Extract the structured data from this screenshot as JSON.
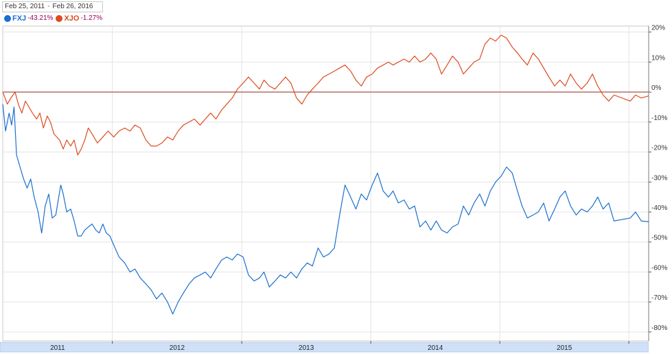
{
  "range": {
    "start": "Feb 25, 2011",
    "end": "Feb 26, 2016",
    "separator": "-"
  },
  "legend": [
    {
      "symbol": "FXJ",
      "change": "-43.21%",
      "color": "#1a6fd0"
    },
    {
      "symbol": "XJO",
      "change": "-1.27%",
      "color": "#dd4a1e"
    }
  ],
  "chart_data": {
    "type": "line",
    "ylabel": "",
    "ylim": [
      -83,
      22
    ],
    "y_ticks": [
      "20%",
      "10%",
      "0%",
      "-10%",
      "-20%",
      "-30%",
      "-40%",
      "-50%",
      "-60%",
      "-70%",
      "-80%"
    ],
    "y_tick_values": [
      20,
      10,
      0,
      -10,
      -20,
      -30,
      -40,
      -50,
      -60,
      -70,
      -80
    ],
    "year_ticks": [
      "2011",
      "2012",
      "2013",
      "2014",
      "2015"
    ],
    "x_start": "2011-02-25",
    "x_end": "2016-02-26",
    "grid": true,
    "series": [
      {
        "name": "FXJ",
        "color": "#1a6fd0",
        "points": [
          [
            "2011-02-25",
            -4
          ],
          [
            "2011-03-05",
            -13
          ],
          [
            "2011-03-15",
            -7
          ],
          [
            "2011-03-22",
            -11
          ],
          [
            "2011-03-29",
            -5
          ],
          [
            "2011-04-05",
            -21
          ],
          [
            "2011-04-15",
            -25
          ],
          [
            "2011-04-25",
            -29
          ],
          [
            "2011-05-05",
            -32
          ],
          [
            "2011-05-15",
            -29
          ],
          [
            "2011-05-25",
            -35
          ],
          [
            "2011-06-05",
            -40
          ],
          [
            "2011-06-15",
            -47
          ],
          [
            "2011-06-25",
            -38
          ],
          [
            "2011-07-05",
            -34
          ],
          [
            "2011-07-15",
            -42
          ],
          [
            "2011-07-25",
            -41
          ],
          [
            "2011-08-01",
            -36
          ],
          [
            "2011-08-08",
            -31
          ],
          [
            "2011-08-15",
            -34
          ],
          [
            "2011-08-25",
            -40
          ],
          [
            "2011-09-05",
            -39
          ],
          [
            "2011-09-15",
            -43
          ],
          [
            "2011-09-25",
            -48
          ],
          [
            "2011-10-05",
            -48
          ],
          [
            "2011-10-15",
            -46
          ],
          [
            "2011-10-25",
            -45
          ],
          [
            "2011-11-05",
            -44
          ],
          [
            "2011-11-15",
            -46
          ],
          [
            "2011-11-25",
            -47
          ],
          [
            "2011-12-05",
            -44
          ],
          [
            "2011-12-15",
            -47
          ],
          [
            "2011-12-25",
            -48
          ],
          [
            "2012-01-05",
            -51
          ],
          [
            "2012-01-20",
            -55
          ],
          [
            "2012-02-05",
            -57
          ],
          [
            "2012-02-20",
            -60
          ],
          [
            "2012-03-05",
            -59
          ],
          [
            "2012-03-20",
            -62
          ],
          [
            "2012-04-05",
            -64
          ],
          [
            "2012-04-20",
            -66
          ],
          [
            "2012-05-05",
            -69
          ],
          [
            "2012-05-20",
            -67
          ],
          [
            "2012-06-05",
            -70
          ],
          [
            "2012-06-20",
            -74
          ],
          [
            "2012-07-05",
            -70
          ],
          [
            "2012-07-20",
            -67
          ],
          [
            "2012-08-05",
            -64
          ],
          [
            "2012-08-20",
            -62
          ],
          [
            "2012-09-05",
            -61
          ],
          [
            "2012-09-20",
            -60
          ],
          [
            "2012-10-05",
            -62
          ],
          [
            "2012-10-20",
            -59
          ],
          [
            "2012-11-05",
            -56
          ],
          [
            "2012-11-20",
            -55
          ],
          [
            "2012-12-05",
            -56
          ],
          [
            "2012-12-20",
            -54
          ],
          [
            "2013-01-05",
            -55
          ],
          [
            "2013-01-20",
            -61
          ],
          [
            "2013-02-05",
            -63
          ],
          [
            "2013-02-20",
            -62
          ],
          [
            "2013-03-05",
            -60
          ],
          [
            "2013-03-20",
            -65
          ],
          [
            "2013-04-05",
            -63
          ],
          [
            "2013-04-20",
            -61
          ],
          [
            "2013-05-05",
            -62
          ],
          [
            "2013-05-20",
            -60
          ],
          [
            "2013-06-05",
            -62
          ],
          [
            "2013-06-20",
            -59
          ],
          [
            "2013-07-05",
            -57
          ],
          [
            "2013-07-20",
            -58
          ],
          [
            "2013-08-05",
            -52
          ],
          [
            "2013-08-20",
            -55
          ],
          [
            "2013-09-05",
            -54
          ],
          [
            "2013-09-20",
            -52
          ],
          [
            "2013-10-05",
            -41
          ],
          [
            "2013-10-20",
            -31
          ],
          [
            "2013-11-05",
            -35
          ],
          [
            "2013-11-20",
            -39
          ],
          [
            "2013-12-05",
            -34
          ],
          [
            "2013-12-20",
            -36
          ],
          [
            "2014-01-05",
            -31
          ],
          [
            "2014-01-20",
            -27
          ],
          [
            "2014-02-05",
            -33
          ],
          [
            "2014-02-20",
            -35
          ],
          [
            "2014-03-05",
            -33
          ],
          [
            "2014-03-20",
            -37
          ],
          [
            "2014-04-05",
            -36
          ],
          [
            "2014-04-20",
            -39
          ],
          [
            "2014-05-05",
            -38
          ],
          [
            "2014-05-20",
            -45
          ],
          [
            "2014-06-05",
            -43
          ],
          [
            "2014-06-20",
            -46
          ],
          [
            "2014-07-05",
            -43
          ],
          [
            "2014-07-20",
            -46
          ],
          [
            "2014-08-05",
            -47
          ],
          [
            "2014-08-20",
            -45
          ],
          [
            "2014-09-05",
            -44
          ],
          [
            "2014-09-20",
            -38
          ],
          [
            "2014-10-05",
            -41
          ],
          [
            "2014-10-20",
            -37
          ],
          [
            "2014-11-05",
            -34
          ],
          [
            "2014-11-20",
            -38
          ],
          [
            "2014-12-05",
            -33
          ],
          [
            "2014-12-20",
            -30
          ],
          [
            "2015-01-05",
            -28
          ],
          [
            "2015-01-20",
            -25
          ],
          [
            "2015-02-05",
            -27
          ],
          [
            "2015-02-20",
            -33
          ],
          [
            "2015-03-05",
            -38
          ],
          [
            "2015-03-20",
            -42
          ],
          [
            "2015-04-05",
            -41
          ],
          [
            "2015-04-20",
            -40
          ],
          [
            "2015-05-05",
            -37
          ],
          [
            "2015-05-20",
            -43
          ],
          [
            "2015-06-05",
            -39
          ],
          [
            "2015-06-20",
            -35
          ],
          [
            "2015-07-05",
            -33
          ],
          [
            "2015-07-20",
            -38
          ],
          [
            "2015-08-05",
            -41
          ],
          [
            "2015-08-20",
            -39
          ],
          [
            "2015-09-05",
            -40
          ],
          [
            "2015-09-20",
            -38
          ],
          [
            "2015-10-05",
            -35
          ],
          [
            "2015-10-20",
            -39
          ],
          [
            "2015-11-05",
            -37
          ],
          [
            "2015-11-20",
            -43
          ],
          [
            "2016-01-05",
            -42
          ],
          [
            "2016-01-20",
            -40
          ],
          [
            "2016-02-05",
            -43
          ],
          [
            "2016-02-26",
            -43.21
          ]
        ]
      },
      {
        "name": "XJO",
        "color": "#dd4a1e",
        "points": [
          [
            "2011-02-25",
            0
          ],
          [
            "2011-03-10",
            -4
          ],
          [
            "2011-03-20",
            -2
          ],
          [
            "2011-04-01",
            0
          ],
          [
            "2011-04-10",
            -4
          ],
          [
            "2011-04-20",
            -7
          ],
          [
            "2011-04-30",
            -3
          ],
          [
            "2011-05-10",
            -5
          ],
          [
            "2011-05-20",
            -7
          ],
          [
            "2011-06-01",
            -9
          ],
          [
            "2011-06-10",
            -7
          ],
          [
            "2011-06-20",
            -12
          ],
          [
            "2011-07-01",
            -8
          ],
          [
            "2011-07-10",
            -10
          ],
          [
            "2011-07-20",
            -14
          ],
          [
            "2011-08-05",
            -16
          ],
          [
            "2011-08-15",
            -19
          ],
          [
            "2011-08-25",
            -16
          ],
          [
            "2011-09-05",
            -18
          ],
          [
            "2011-09-15",
            -16
          ],
          [
            "2011-09-25",
            -21
          ],
          [
            "2011-10-05",
            -19
          ],
          [
            "2011-10-15",
            -16
          ],
          [
            "2011-10-25",
            -12
          ],
          [
            "2011-11-05",
            -14
          ],
          [
            "2011-11-20",
            -17
          ],
          [
            "2011-12-05",
            -15
          ],
          [
            "2011-12-20",
            -13
          ],
          [
            "2012-01-05",
            -15
          ],
          [
            "2012-01-20",
            -13
          ],
          [
            "2012-02-05",
            -12
          ],
          [
            "2012-02-20",
            -13
          ],
          [
            "2012-03-05",
            -11
          ],
          [
            "2012-03-20",
            -12
          ],
          [
            "2012-04-05",
            -16
          ],
          [
            "2012-04-20",
            -18
          ],
          [
            "2012-05-05",
            -18
          ],
          [
            "2012-05-20",
            -17
          ],
          [
            "2012-06-05",
            -15
          ],
          [
            "2012-06-20",
            -16
          ],
          [
            "2012-07-05",
            -13
          ],
          [
            "2012-07-20",
            -11
          ],
          [
            "2012-08-05",
            -10
          ],
          [
            "2012-08-20",
            -9
          ],
          [
            "2012-09-05",
            -11
          ],
          [
            "2012-09-20",
            -9
          ],
          [
            "2012-10-05",
            -7
          ],
          [
            "2012-10-20",
            -9
          ],
          [
            "2012-11-05",
            -6
          ],
          [
            "2012-11-20",
            -4
          ],
          [
            "2012-12-05",
            -2
          ],
          [
            "2012-12-20",
            1
          ],
          [
            "2013-01-05",
            3
          ],
          [
            "2013-01-20",
            5
          ],
          [
            "2013-02-05",
            3
          ],
          [
            "2013-02-20",
            1
          ],
          [
            "2013-03-05",
            4
          ],
          [
            "2013-03-20",
            2
          ],
          [
            "2013-04-05",
            1
          ],
          [
            "2013-04-20",
            3
          ],
          [
            "2013-05-05",
            5
          ],
          [
            "2013-05-20",
            3
          ],
          [
            "2013-06-05",
            -2
          ],
          [
            "2013-06-20",
            -4
          ],
          [
            "2013-07-05",
            -1
          ],
          [
            "2013-07-20",
            1
          ],
          [
            "2013-08-05",
            3
          ],
          [
            "2013-08-20",
            5
          ],
          [
            "2013-09-05",
            6
          ],
          [
            "2013-09-20",
            7
          ],
          [
            "2013-10-05",
            8
          ],
          [
            "2013-10-20",
            9
          ],
          [
            "2013-11-05",
            7
          ],
          [
            "2013-11-20",
            4
          ],
          [
            "2013-12-05",
            2
          ],
          [
            "2013-12-20",
            5
          ],
          [
            "2014-01-05",
            6
          ],
          [
            "2014-01-20",
            8
          ],
          [
            "2014-02-05",
            9
          ],
          [
            "2014-02-20",
            10
          ],
          [
            "2014-03-05",
            9
          ],
          [
            "2014-03-20",
            10
          ],
          [
            "2014-04-05",
            11
          ],
          [
            "2014-04-20",
            10
          ],
          [
            "2014-05-05",
            12
          ],
          [
            "2014-05-20",
            10
          ],
          [
            "2014-06-05",
            11
          ],
          [
            "2014-06-20",
            13
          ],
          [
            "2014-07-05",
            11
          ],
          [
            "2014-07-20",
            6
          ],
          [
            "2014-08-05",
            9
          ],
          [
            "2014-08-20",
            12
          ],
          [
            "2014-09-05",
            10
          ],
          [
            "2014-09-20",
            6
          ],
          [
            "2014-10-05",
            8
          ],
          [
            "2014-10-20",
            10
          ],
          [
            "2014-11-05",
            11
          ],
          [
            "2014-11-20",
            16
          ],
          [
            "2014-12-05",
            18
          ],
          [
            "2014-12-20",
            17
          ],
          [
            "2015-01-05",
            19
          ],
          [
            "2015-01-20",
            18
          ],
          [
            "2015-02-05",
            15
          ],
          [
            "2015-02-20",
            13
          ],
          [
            "2015-03-05",
            11
          ],
          [
            "2015-03-20",
            9
          ],
          [
            "2015-04-05",
            13
          ],
          [
            "2015-04-20",
            11
          ],
          [
            "2015-05-05",
            8
          ],
          [
            "2015-05-20",
            5
          ],
          [
            "2015-06-05",
            2
          ],
          [
            "2015-06-20",
            4
          ],
          [
            "2015-07-05",
            2
          ],
          [
            "2015-07-20",
            6
          ],
          [
            "2015-08-05",
            3
          ],
          [
            "2015-08-20",
            1
          ],
          [
            "2015-09-05",
            3
          ],
          [
            "2015-09-20",
            6
          ],
          [
            "2015-10-05",
            2
          ],
          [
            "2015-10-20",
            -1
          ],
          [
            "2015-11-05",
            -3
          ],
          [
            "2015-11-20",
            -1
          ],
          [
            "2016-01-05",
            -3
          ],
          [
            "2016-01-20",
            -1
          ],
          [
            "2016-02-05",
            -2
          ],
          [
            "2016-02-26",
            -1.27
          ]
        ]
      }
    ]
  }
}
